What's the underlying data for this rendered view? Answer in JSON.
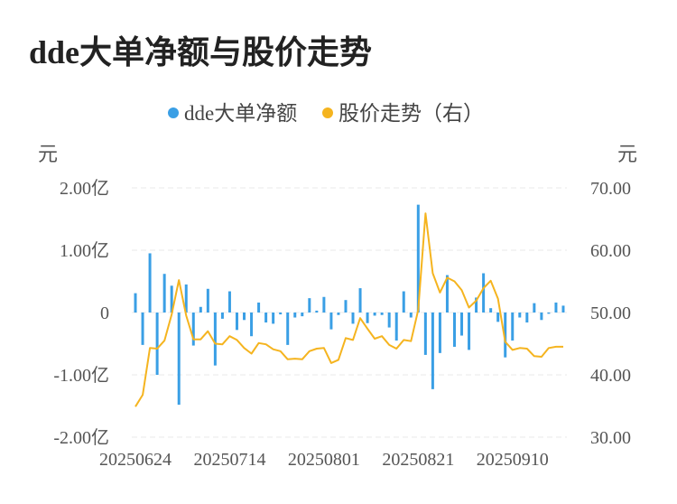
{
  "title": "dde大单净额与股价走势",
  "colors": {
    "bar": "#3a9fe5",
    "line": "#f5b41f",
    "grid": "#e8e8e8",
    "text": "#555555"
  },
  "legend": [
    {
      "label": "dde大单净额",
      "color": "#3a9fe5"
    },
    {
      "label": "股价走势（右）",
      "color": "#f5b41f"
    }
  ],
  "chart_data": {
    "type": "bar",
    "title": "dde大单净额与股价走势",
    "left_axis": {
      "unit": "元",
      "ylim": [
        -2.0,
        2.0
      ],
      "tick_labels": [
        "2.00亿",
        "1.00亿",
        "0",
        "-1.00亿",
        "-2.00亿"
      ]
    },
    "right_axis": {
      "unit": "元",
      "ylim": [
        30,
        70
      ],
      "tick_labels": [
        "70.00",
        "60.00",
        "50.00",
        "40.00",
        "30.00"
      ]
    },
    "x_tick_labels": [
      "20250624",
      "20250714",
      "20250801",
      "20250821",
      "20250910"
    ],
    "grid": true,
    "legend_position": "top-center",
    "series": [
      {
        "name": "dde大单净额",
        "type": "bar",
        "axis": "left",
        "values": [
          0.31,
          -0.52,
          0.95,
          -1.0,
          0.62,
          0.43,
          -1.48,
          0.45,
          -0.53,
          0.09,
          0.38,
          -0.85,
          -0.1,
          0.34,
          -0.28,
          -0.12,
          -0.38,
          0.16,
          -0.16,
          -0.18,
          -0.03,
          -0.52,
          -0.08,
          -0.06,
          0.23,
          0.03,
          0.25,
          -0.27,
          -0.04,
          0.2,
          -0.18,
          0.39,
          -0.17,
          -0.05,
          -0.04,
          -0.24,
          -0.45,
          0.34,
          -0.08,
          1.73,
          -0.68,
          -1.23,
          -0.65,
          0.6,
          -0.55,
          -0.37,
          -0.6,
          0.24,
          0.63,
          0.07,
          -0.15,
          -0.72,
          -0.45,
          -0.08,
          -0.16,
          0.15,
          -0.12,
          -0.02,
          0.16,
          0.11
        ]
      },
      {
        "name": "股价走势（右）",
        "type": "line",
        "axis": "right",
        "values": [
          34.9,
          36.8,
          44.3,
          44.2,
          45.5,
          49.7,
          55.2,
          49.5,
          45.7,
          45.7,
          47.0,
          45.0,
          44.9,
          46.2,
          45.6,
          44.3,
          43.4,
          45.1,
          44.9,
          44.1,
          43.8,
          42.5,
          42.6,
          42.5,
          43.8,
          44.2,
          44.3,
          41.9,
          42.4,
          45.9,
          45.6,
          49.1,
          47.4,
          45.8,
          46.2,
          44.8,
          44.2,
          45.6,
          45.4,
          50.4,
          65.9,
          56.3,
          53.2,
          55.6,
          55.0,
          53.6,
          50.8,
          51.9,
          53.9,
          55.1,
          52.2,
          45.3,
          44.0,
          44.3,
          44.2,
          43.0,
          42.9,
          44.3,
          44.5,
          44.5
        ]
      }
    ]
  }
}
